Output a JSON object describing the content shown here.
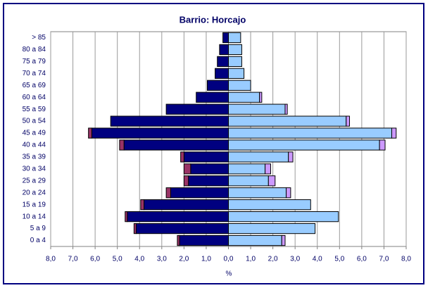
{
  "chart_data": {
    "type": "pyramid",
    "title": "Barrio: Horcajo",
    "x_label": "%",
    "categories": [
      "> 85",
      "80 a 84",
      "75 a 79",
      "70 a 74",
      "65 a 69",
      "60 a 64",
      "55 a 59",
      "50 a 54",
      "45 a 49",
      "40 a 44",
      "35 a 39",
      "30 a 34",
      "25 a 29",
      "20 a 24",
      "15 a 19",
      "10 a 14",
      "5 a 9",
      "0 a 4"
    ],
    "series": [
      {
        "color": "#000080",
        "values": [
          -0.25,
          -0.4,
          -0.5,
          -0.6,
          -0.95,
          -1.45,
          -2.8,
          -5.3,
          -6.15,
          -4.7,
          -2.0,
          -1.7,
          -1.8,
          -2.6,
          -3.8,
          -4.55,
          -4.15,
          -2.2
        ]
      },
      {
        "color": "#993366",
        "values": [
          0,
          0,
          0,
          0,
          0,
          0,
          0,
          0,
          -0.15,
          -0.2,
          -0.15,
          -0.3,
          -0.2,
          -0.2,
          -0.15,
          -0.1,
          -0.1,
          -0.1
        ]
      },
      {
        "color": "#99CCFF",
        "values": [
          0.55,
          0.6,
          0.6,
          0.7,
          1.0,
          1.4,
          2.55,
          5.3,
          7.35,
          6.8,
          2.7,
          1.65,
          1.8,
          2.6,
          3.7,
          4.95,
          3.9,
          2.4
        ]
      },
      {
        "color": "#CC99FF",
        "values": [
          0,
          0,
          0,
          0,
          0,
          0.1,
          0.1,
          0.15,
          0.2,
          0.25,
          0.2,
          0.25,
          0.3,
          0.2,
          0,
          0,
          0,
          0.15
        ]
      }
    ],
    "xlim": [
      -8,
      8
    ],
    "xticks": [
      {
        "value": -8,
        "label": "8,0"
      },
      {
        "value": -7,
        "label": "7,0"
      },
      {
        "value": -6,
        "label": "6,0"
      },
      {
        "value": -5,
        "label": "5,0"
      },
      {
        "value": -4,
        "label": "4,0"
      },
      {
        "value": -3,
        "label": "3,0"
      },
      {
        "value": -2,
        "label": "2,0"
      },
      {
        "value": -1,
        "label": "1,0"
      },
      {
        "value": 0,
        "label": "0,0"
      },
      {
        "value": 1,
        "label": "1,0"
      },
      {
        "value": 2,
        "label": "2,0"
      },
      {
        "value": 3,
        "label": "3,0"
      },
      {
        "value": 4,
        "label": "4,0"
      },
      {
        "value": 5,
        "label": "5,0"
      },
      {
        "value": 6,
        "label": "6,0"
      },
      {
        "value": 7,
        "label": "7,0"
      },
      {
        "value": 8,
        "label": "8,0"
      }
    ],
    "grid": true
  }
}
